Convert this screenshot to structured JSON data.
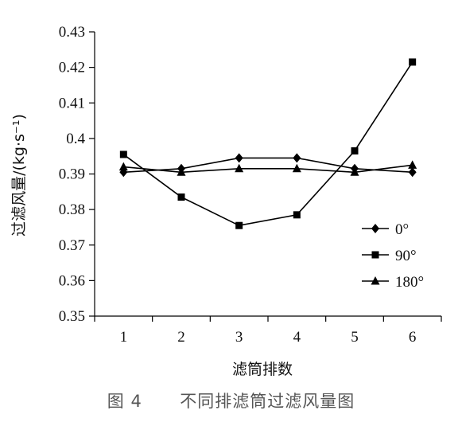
{
  "chart_data": {
    "type": "line",
    "title": "",
    "xlabel": "滤筒排数",
    "ylabel": "过滤风量/(kg·s⁻¹)",
    "x": [
      1,
      2,
      3,
      4,
      5,
      6
    ],
    "xlim": [
      0.5,
      6.5
    ],
    "ylim": [
      0.35,
      0.43
    ],
    "yticks": [
      "0.35",
      "0.36",
      "0.37",
      "0.38",
      "0.39",
      "0.4",
      "0.41",
      "0.42",
      "0.43"
    ],
    "xticks": [
      "1",
      "2",
      "3",
      "4",
      "5",
      "6"
    ],
    "grid": false,
    "legend_position": "bottom-right",
    "series": [
      {
        "name": "0°",
        "marker": "diamond",
        "color": "#000000",
        "values": [
          0.3905,
          0.3915,
          0.3945,
          0.3945,
          0.3915,
          0.3905
        ]
      },
      {
        "name": "90°",
        "marker": "square",
        "color": "#000000",
        "values": [
          0.3955,
          0.3835,
          0.3755,
          0.3785,
          0.3965,
          0.4215
        ]
      },
      {
        "name": "180°",
        "marker": "triangle",
        "color": "#000000",
        "values": [
          0.392,
          0.3905,
          0.3915,
          0.3915,
          0.3905,
          0.3925
        ]
      }
    ]
  },
  "caption": {
    "figure_number": "图 4",
    "text": "不同排滤筒过滤风量图"
  }
}
